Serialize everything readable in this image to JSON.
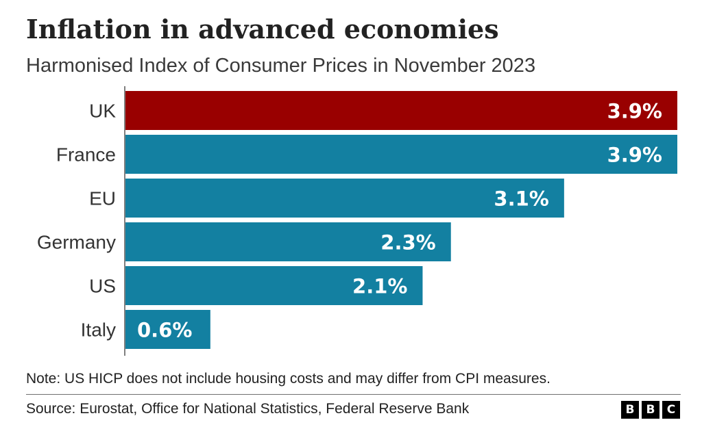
{
  "header": {
    "title": "Inflation in advanced economies",
    "subtitle": "Harmonised Index of Consumer Prices in November 2023"
  },
  "chart_data": {
    "type": "bar",
    "orientation": "horizontal",
    "categories": [
      "UK",
      "France",
      "EU",
      "Germany",
      "US",
      "Italy"
    ],
    "values": [
      3.9,
      3.9,
      3.1,
      2.3,
      2.1,
      0.6
    ],
    "value_labels": [
      "3.9%",
      "3.9%",
      "3.1%",
      "2.3%",
      "2.1%",
      "0.6%"
    ],
    "highlight": "UK",
    "colors": {
      "highlight": "#990000",
      "default": "#1380a1",
      "label": "#ffffff"
    },
    "xlim": [
      0,
      3.9
    ],
    "grid": false,
    "legend": "none"
  },
  "footer": {
    "note": "Note: US HICP does not include housing costs and may differ from CPI measures.",
    "source": "Source: Eurostat, Office for National Statistics, Federal Reserve Bank",
    "logo_letters": [
      "B",
      "B",
      "C"
    ]
  }
}
